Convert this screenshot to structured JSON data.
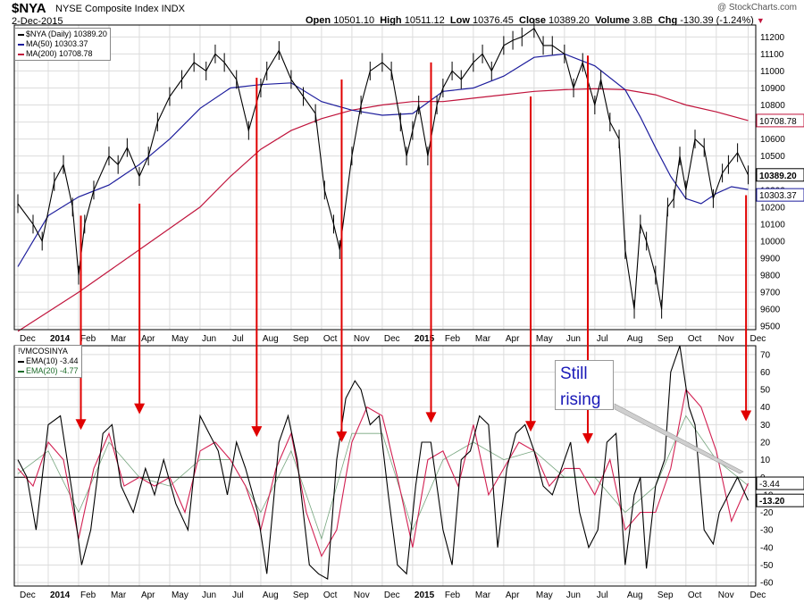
{
  "header": {
    "symbol": "$NYA",
    "name": "NYSE Composite Index",
    "exchange": "INDX",
    "date": "2-Dec-2015",
    "watermark": "@ StockCharts.com",
    "open_label": "Open",
    "open": "10501.10",
    "high_label": "High",
    "high": "10511.12",
    "low_label": "Low",
    "low": "10376.45",
    "close_label": "Close",
    "close": "10389.20",
    "volume_label": "Volume",
    "volume": "3.8B",
    "chg_label": "Chg",
    "chg": "-130.39 (-1.24%)",
    "chg_arrow": "▼"
  },
  "annotation": {
    "line1": "Still",
    "line2": "rising"
  },
  "colors": {
    "price": "#000000",
    "ma50": "#1c1c9c",
    "ma200": "#c0143c",
    "osc": "#000000",
    "ema10": "#000000",
    "ema20": "#d22052",
    "arrow": "#e00000",
    "grid": "#dcdcdc",
    "note_text": "#1a1ab8"
  },
  "chart_data": [
    {
      "type": "line",
      "panel": "price",
      "legend": [
        "$NYA (Daily) 10389.20",
        "MA(50) 10303.37",
        "MA(200) 10708.78"
      ],
      "last_value_labels": {
        "ma200": "10708.78",
        "close": "10389.20",
        "ma50": "10303.37"
      },
      "y_ticks": [
        9500,
        9600,
        9700,
        9800,
        9900,
        10000,
        10100,
        10200,
        10300,
        10400,
        10500,
        10600,
        10700,
        10800,
        10900,
        11000,
        11100,
        11200
      ],
      "ylim": [
        9480,
        11270
      ],
      "x_month_labels": [
        "Dec",
        "2014",
        "Feb",
        "Mar",
        "Apr",
        "May",
        "Jun",
        "Jul",
        "Aug",
        "Sep",
        "Oct",
        "Nov",
        "Dec",
        "2015",
        "Feb",
        "Mar",
        "Apr",
        "May",
        "Jun",
        "Jul",
        "Aug",
        "Sep",
        "Oct",
        "Nov",
        "Dec"
      ],
      "x_month_index": [
        0,
        1,
        2,
        3,
        4,
        5,
        6,
        7,
        8,
        9,
        10,
        11,
        12,
        13,
        14,
        15,
        16,
        17,
        18,
        19,
        20,
        21,
        22,
        23,
        24.05
      ],
      "series": [
        {
          "name": "$NYA",
          "key": "price",
          "x": [
            0,
            0.5,
            0.8,
            1.2,
            1.5,
            1.8,
            2.0,
            2.2,
            2.5,
            3.0,
            3.3,
            3.6,
            4.0,
            4.3,
            4.6,
            5.0,
            5.4,
            5.8,
            6.2,
            6.5,
            6.8,
            7.2,
            7.6,
            8.0,
            8.2,
            8.6,
            9.0,
            9.4,
            9.8,
            10.1,
            10.4,
            10.6,
            11.0,
            11.3,
            11.6,
            12.0,
            12.3,
            12.6,
            12.8,
            13.0,
            13.2,
            13.5,
            13.8,
            14.0,
            14.3,
            14.6,
            15.0,
            15.3,
            15.6,
            16.0,
            16.3,
            16.6,
            17.0,
            17.3,
            17.6,
            18.0,
            18.3,
            18.6,
            19.0,
            19.2,
            19.5,
            19.8,
            20.0,
            20.3,
            20.5,
            20.7,
            21.0,
            21.2,
            21.4,
            21.6,
            21.8,
            22.0,
            22.3,
            22.6,
            22.9,
            23.2,
            23.4,
            23.7,
            24.05
          ],
          "values": [
            10220,
            10100,
            10000,
            10350,
            10450,
            10200,
            9800,
            10100,
            10300,
            10500,
            10450,
            10550,
            10380,
            10500,
            10700,
            10850,
            10950,
            11050,
            11000,
            11100,
            11050,
            10950,
            10650,
            10900,
            11000,
            11120,
            10950,
            10850,
            10750,
            10300,
            10100,
            9950,
            10500,
            10800,
            11000,
            11050,
            11000,
            10700,
            10500,
            10650,
            10800,
            10500,
            10800,
            10900,
            11000,
            10950,
            11050,
            11100,
            11000,
            11150,
            11180,
            11200,
            11250,
            11150,
            11150,
            11100,
            10900,
            11050,
            10800,
            10950,
            10700,
            10600,
            9950,
            9600,
            10100,
            10000,
            9800,
            9600,
            10200,
            10250,
            10500,
            10300,
            10600,
            10550,
            10250,
            10400,
            10450,
            10520,
            10389.2
          ]
        },
        {
          "name": "MA(50)",
          "key": "ma50",
          "x": [
            0,
            1,
            2,
            3,
            4,
            5,
            6,
            7,
            8,
            9,
            10,
            11,
            12,
            13,
            14,
            15,
            16,
            17,
            18,
            19,
            20,
            20.5,
            21,
            21.5,
            22,
            22.5,
            23,
            23.5,
            24.05
          ],
          "values": [
            9850,
            10150,
            10260,
            10330,
            10450,
            10600,
            10780,
            10900,
            10920,
            10930,
            10820,
            10770,
            10740,
            10750,
            10880,
            10900,
            10970,
            11080,
            11100,
            11030,
            10890,
            10730,
            10550,
            10380,
            10250,
            10220,
            10280,
            10320,
            10303.37
          ]
        },
        {
          "name": "MA(200)",
          "key": "ma200",
          "x": [
            0,
            2,
            4,
            6,
            7,
            8,
            9,
            10,
            11,
            12,
            13,
            14,
            15,
            16,
            17,
            18,
            19,
            20,
            21,
            22,
            23,
            24.05
          ],
          "values": [
            9470,
            9700,
            9950,
            10200,
            10380,
            10540,
            10650,
            10720,
            10770,
            10800,
            10820,
            10820,
            10840,
            10860,
            10880,
            10890,
            10895,
            10890,
            10860,
            10800,
            10760,
            10708.78
          ]
        }
      ]
    },
    {
      "type": "line",
      "panel": "oscillator",
      "legend": [
        "!VMCOSINYA",
        "EMA(10) -3.44",
        "EMA(20) -4.77"
      ],
      "last_value_labels": {
        "ema10": "-3.44",
        "osc": "-13.20"
      },
      "y_ticks": [
        -60,
        -50,
        -40,
        -30,
        -20,
        -10,
        0,
        10,
        20,
        30,
        40,
        50,
        60,
        70
      ],
      "ylim": [
        -62,
        75
      ],
      "x_month_labels": [
        "Dec",
        "2014",
        "Feb",
        "Mar",
        "Apr",
        "May",
        "Jun",
        "Jul",
        "Aug",
        "Sep",
        "Oct",
        "Nov",
        "Dec",
        "2015",
        "Feb",
        "Mar",
        "Apr",
        "May",
        "Jun",
        "Jul",
        "Aug",
        "Sep",
        "Oct",
        "Nov",
        "Dec"
      ],
      "x_month_index": [
        0,
        1,
        2,
        3,
        4,
        5,
        6,
        7,
        8,
        9,
        10,
        11,
        12,
        13,
        14,
        15,
        16,
        17,
        18,
        19,
        20,
        21,
        22,
        23,
        24.05
      ],
      "series": [
        {
          "name": "!VMCOSINYA",
          "key": "osc",
          "x": [
            0,
            0.3,
            0.6,
            1.0,
            1.4,
            1.8,
            2.1,
            2.4,
            2.8,
            3.1,
            3.4,
            3.8,
            4.2,
            4.5,
            4.8,
            5.2,
            5.6,
            6.0,
            6.3,
            6.6,
            6.9,
            7.2,
            7.5,
            7.9,
            8.2,
            8.6,
            8.9,
            9.2,
            9.6,
            9.9,
            10.2,
            10.5,
            10.8,
            11.1,
            11.3,
            11.6,
            11.9,
            12.2,
            12.5,
            12.8,
            13.1,
            13.3,
            13.6,
            14.0,
            14.3,
            14.6,
            14.9,
            15.2,
            15.5,
            15.8,
            16.1,
            16.4,
            16.7,
            17.0,
            17.3,
            17.6,
            17.9,
            18.2,
            18.5,
            18.8,
            19.1,
            19.4,
            19.7,
            20.0,
            20.3,
            20.5,
            20.7,
            21.0,
            21.3,
            21.5,
            21.8,
            22.1,
            22.3,
            22.6,
            22.9,
            23.1,
            23.4,
            23.7,
            24.05
          ],
          "values": [
            10,
            0,
            -30,
            30,
            35,
            -10,
            -50,
            -30,
            25,
            30,
            -5,
            -20,
            5,
            -10,
            10,
            -15,
            -30,
            35,
            25,
            15,
            -10,
            20,
            5,
            -20,
            -55,
            20,
            35,
            10,
            -50,
            -55,
            -58,
            10,
            45,
            55,
            50,
            30,
            35,
            -10,
            -50,
            -55,
            -5,
            20,
            20,
            -30,
            -50,
            10,
            15,
            35,
            30,
            -40,
            5,
            25,
            30,
            15,
            -5,
            -10,
            5,
            20,
            -20,
            -40,
            -30,
            20,
            25,
            -50,
            -10,
            0,
            -52,
            -5,
            10,
            60,
            75,
            40,
            30,
            -30,
            -38,
            -20,
            -10,
            0,
            -13.2
          ]
        },
        {
          "name": "EMA(10)",
          "key": "ema10",
          "x": [
            0,
            0.5,
            1.0,
            1.5,
            2.0,
            2.5,
            3.0,
            3.5,
            4.0,
            4.5,
            5.0,
            5.5,
            6.0,
            6.5,
            7.0,
            7.5,
            8.0,
            8.5,
            9.0,
            9.5,
            10.0,
            10.5,
            11.0,
            11.5,
            12.0,
            12.5,
            13.0,
            13.5,
            14.0,
            14.5,
            15.0,
            15.5,
            16.0,
            16.5,
            17.0,
            17.5,
            18.0,
            18.5,
            19.0,
            19.5,
            20.0,
            20.5,
            21.0,
            21.5,
            22.0,
            22.5,
            23.0,
            23.5,
            24.05
          ],
          "values": [
            5,
            -5,
            20,
            10,
            -35,
            5,
            25,
            -5,
            0,
            -5,
            0,
            -20,
            15,
            20,
            10,
            -5,
            -30,
            5,
            25,
            -20,
            -45,
            -30,
            20,
            40,
            35,
            0,
            -40,
            10,
            15,
            -5,
            30,
            -10,
            5,
            20,
            15,
            -5,
            5,
            5,
            -10,
            10,
            -30,
            -20,
            -20,
            5,
            50,
            40,
            15,
            -25,
            -3.44
          ]
        },
        {
          "name": "EMA(20)",
          "key": "ema20",
          "x": [
            0,
            1,
            2,
            3,
            4,
            5,
            6,
            7,
            8,
            9,
            10,
            11,
            12,
            13,
            14,
            15,
            16,
            17,
            18,
            19,
            20,
            21,
            22,
            23,
            24.05
          ],
          "values": [
            2,
            15,
            -20,
            20,
            0,
            -5,
            10,
            10,
            -20,
            15,
            -35,
            25,
            25,
            -30,
            10,
            20,
            10,
            15,
            0,
            0,
            -20,
            -5,
            35,
            10,
            -4.77
          ]
        }
      ]
    }
  ]
}
